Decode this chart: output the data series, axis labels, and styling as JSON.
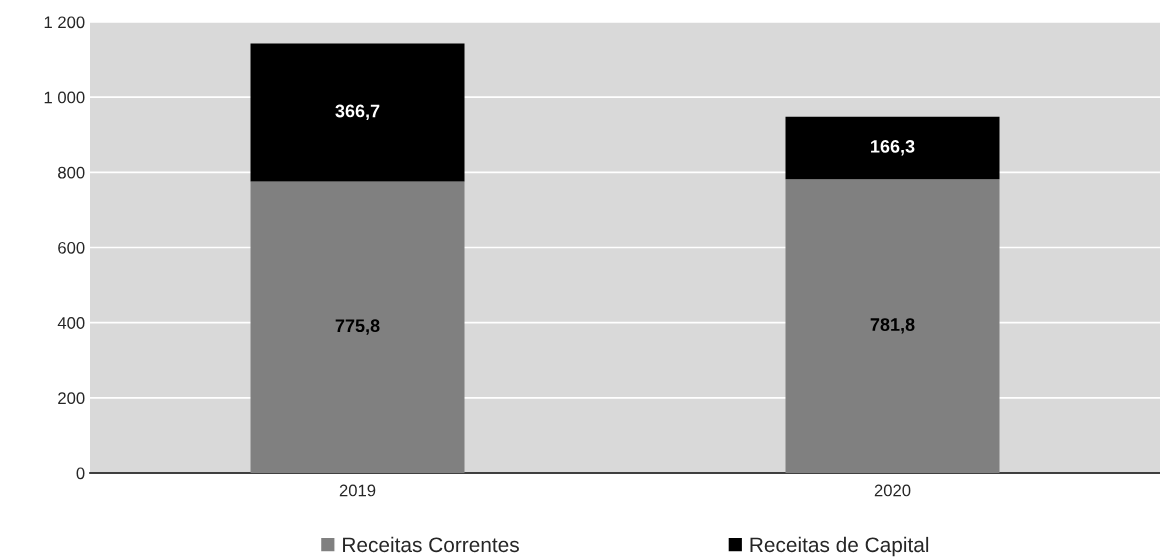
{
  "chart_data": {
    "type": "bar",
    "stacked": true,
    "categories": [
      "2019",
      "2020"
    ],
    "series": [
      {
        "name": "Receitas Correntes",
        "color": "#808080",
        "values": [
          775.8,
          781.8
        ],
        "value_labels": [
          "775,8",
          "781,8"
        ]
      },
      {
        "name": "Receitas de Capital",
        "color": "#000000",
        "values": [
          366.7,
          166.3
        ],
        "value_labels": [
          "366,7",
          "166,3"
        ]
      }
    ],
    "ylim": [
      0,
      1200
    ],
    "yticks": [
      0,
      200,
      400,
      600,
      800,
      {
        "value": 1000,
        "label": "1 000"
      },
      {
        "value": 1200,
        "label": "1 200"
      }
    ],
    "grid": "y",
    "legend": "bottom"
  }
}
